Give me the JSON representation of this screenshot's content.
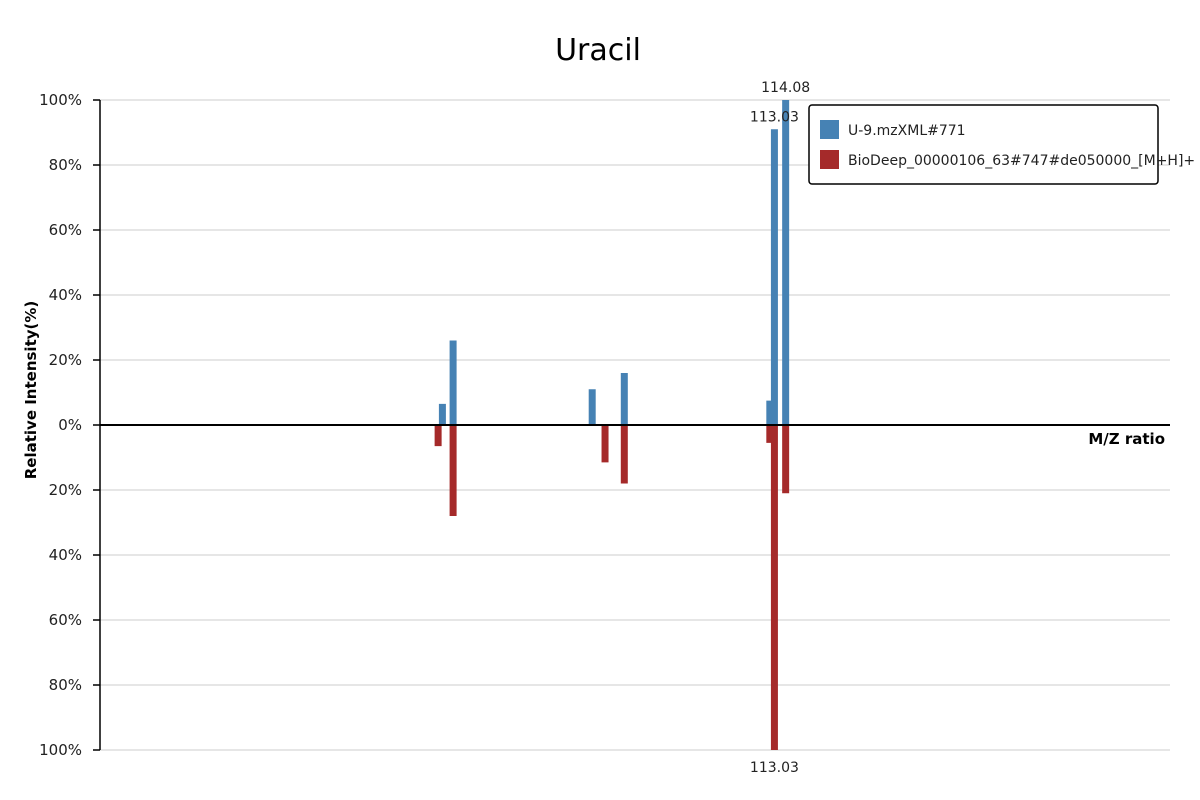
{
  "chart_data": {
    "type": "bar",
    "title": "Uracil",
    "xlabel": "M/Z ratio",
    "ylabel": "Relative Intensity(%)",
    "y_ticks": [
      "100%",
      "80%",
      "60%",
      "40%",
      "20%",
      "0%",
      "20%",
      "40%",
      "60%",
      "80%",
      "100%"
    ],
    "ylim": [
      -100,
      100
    ],
    "grid": true,
    "legend_position": "top-right",
    "series": [
      {
        "name": "U-9.mzXML#771",
        "color": "#4682b4",
        "direction": "up",
        "peaks": [
          {
            "mz": 82.0,
            "intensity": 6.5
          },
          {
            "mz": 83.0,
            "intensity": 26
          },
          {
            "mz": 96.0,
            "intensity": 11
          },
          {
            "mz": 99.0,
            "intensity": 16
          },
          {
            "mz": 112.6,
            "intensity": 7.5
          },
          {
            "mz": 113.03,
            "intensity": 91,
            "label": "113.03"
          },
          {
            "mz": 114.08,
            "intensity": 100,
            "label": "114.08"
          }
        ]
      },
      {
        "name": "BioDeep_00000106_63#747#de050000_[M+H]+",
        "color": "#a52a2a",
        "direction": "down",
        "peaks": [
          {
            "mz": 81.6,
            "intensity": 6.5
          },
          {
            "mz": 83.0,
            "intensity": 28
          },
          {
            "mz": 97.2,
            "intensity": 11.5
          },
          {
            "mz": 99.0,
            "intensity": 18
          },
          {
            "mz": 112.6,
            "intensity": 5.5
          },
          {
            "mz": 113.03,
            "intensity": 100,
            "label": "113.03"
          },
          {
            "mz": 114.08,
            "intensity": 21
          }
        ]
      }
    ]
  }
}
